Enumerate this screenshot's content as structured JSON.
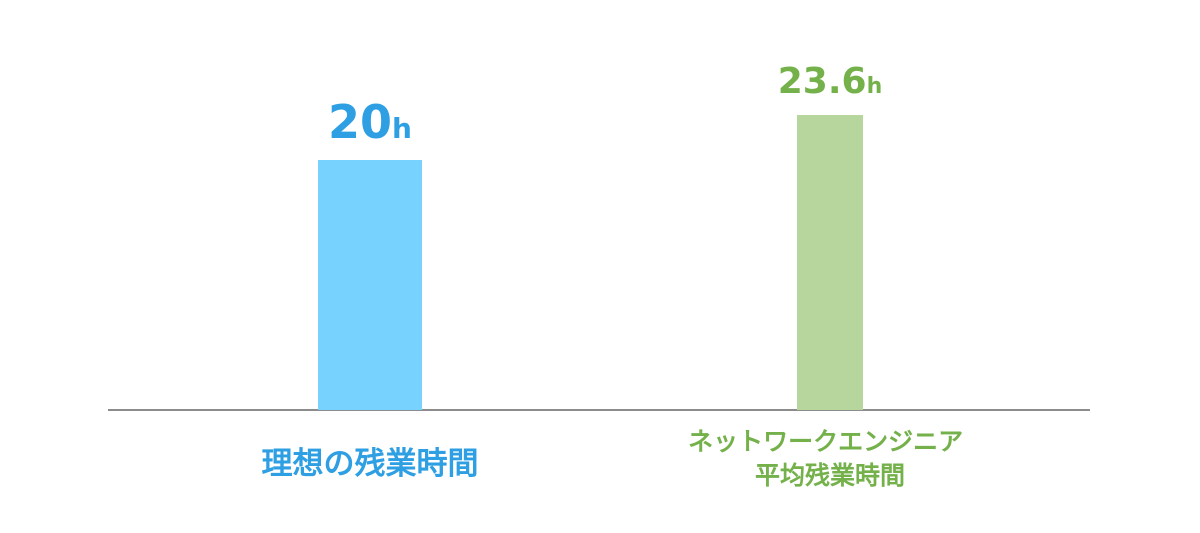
{
  "chart_data": {
    "type": "bar",
    "categories": [
      "理想の残業時間",
      "ネットワークエンジニア\n平均残業時間"
    ],
    "values": [
      20,
      23.6
    ],
    "value_labels": [
      "20h",
      "23.6h"
    ],
    "colors": [
      "#77d2fd",
      "#b6d69e"
    ],
    "label_colors": [
      "#2f9fe3",
      "#74b14a"
    ]
  }
}
